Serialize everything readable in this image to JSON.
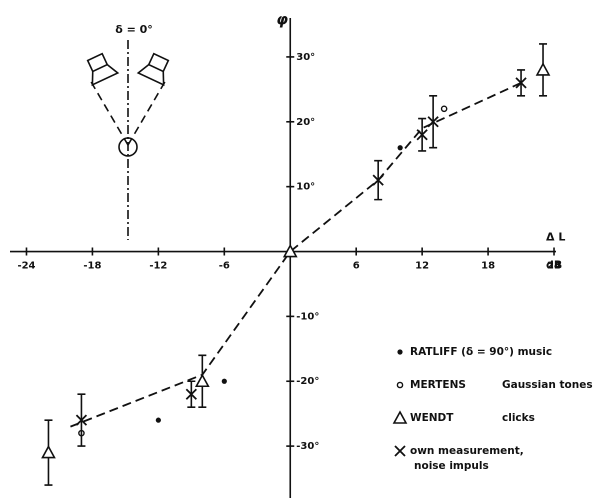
{
  "chart_data": {
    "type": "scatter",
    "x_label": "Δ L",
    "x_unit": "dB",
    "y_label": "φ",
    "inset_label": "δ = 0°",
    "xlim": [
      -25.5,
      26
    ],
    "ylim": [
      -38,
      36
    ],
    "xticks": [
      -24,
      -18,
      -12,
      -6,
      6,
      12,
      18,
      24
    ],
    "yticks": [
      {
        "value": 30,
        "label": "30°"
      },
      {
        "value": 20,
        "label": "20°"
      },
      {
        "value": 10,
        "label": "10°"
      },
      {
        "value": -10,
        "label": "-10°"
      },
      {
        "value": -20,
        "label": "-20°"
      },
      {
        "value": -30,
        "label": "-30°"
      }
    ],
    "curve": {
      "x": [
        -20,
        -8,
        0,
        8,
        12,
        21
      ],
      "y": [
        -27,
        -19,
        0,
        11,
        19,
        26
      ]
    },
    "series": [
      {
        "name": "RATLIFF (δ = 90°) music",
        "marker": "dot",
        "color": "#111",
        "x": [
          10,
          -6,
          -12
        ],
        "y": [
          16,
          -20,
          -26
        ],
        "yerr": [
          null,
          null,
          null
        ]
      },
      {
        "name": "MERTENS",
        "description": "Gaussian tones",
        "marker": "circle",
        "color": "#111",
        "x": [
          14,
          -19
        ],
        "y": [
          22,
          -28
        ],
        "yerr": [
          null,
          null
        ]
      },
      {
        "name": "WENDT",
        "description": "clicks",
        "marker": "triangle",
        "color": "#111",
        "x": [
          0,
          23,
          -22,
          -8
        ],
        "y": [
          0,
          28,
          -31,
          -20
        ],
        "yerr": [
          null,
          4,
          5,
          4
        ]
      },
      {
        "name": "own measurement,",
        "description": "noise impuls",
        "marker": "cross",
        "color": "#111",
        "x": [
          8,
          12,
          13,
          21,
          -19,
          -9
        ],
        "y": [
          11,
          18,
          20,
          26,
          -26,
          -22
        ],
        "yerr": [
          3,
          2.5,
          4,
          2,
          4,
          2
        ]
      }
    ]
  }
}
